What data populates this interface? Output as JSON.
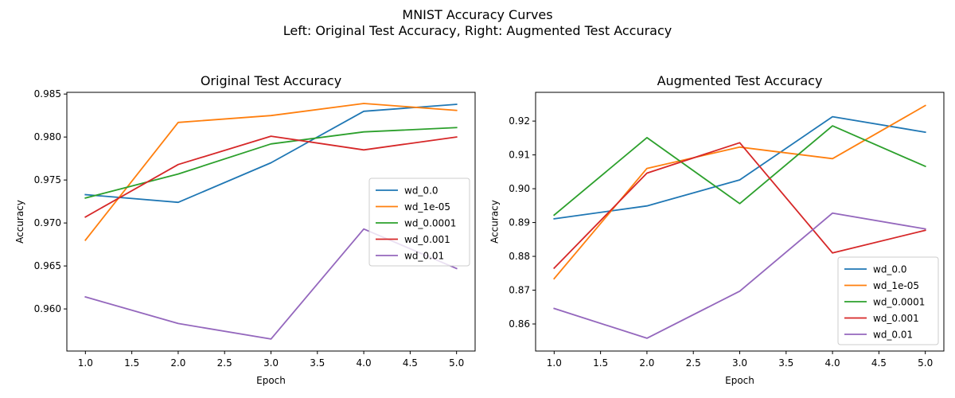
{
  "figure": {
    "suptitle_line1": "MNIST Accuracy Curves",
    "suptitle_line2": "Left: Original Test Accuracy, Right: Augmented Test Accuracy"
  },
  "chart_data": [
    {
      "type": "line",
      "title": "Original Test Accuracy",
      "xlabel": "Epoch",
      "ylabel": "Accuracy",
      "xlim": [
        0.8,
        5.2
      ],
      "ylim": [
        0.9551,
        0.9852
      ],
      "xticks": [
        "1.0",
        "1.5",
        "2.0",
        "2.5",
        "3.0",
        "3.5",
        "4.0",
        "4.5",
        "5.0"
      ],
      "yticks": [
        "0.960",
        "0.965",
        "0.970",
        "0.975",
        "0.980",
        "0.985"
      ],
      "legend_position": "center-right",
      "grid": false,
      "x": [
        1,
        2,
        3,
        4,
        5
      ],
      "series": [
        {
          "name": "wd_0.0",
          "color": "#1f77b4",
          "values": [
            0.9733,
            0.9724,
            0.977,
            0.983,
            0.9838
          ]
        },
        {
          "name": "wd_1e-05",
          "color": "#ff7f0e",
          "values": [
            0.968,
            0.9817,
            0.9825,
            0.9839,
            0.9831
          ]
        },
        {
          "name": "wd_0.0001",
          "color": "#2ca02c",
          "values": [
            0.9729,
            0.9757,
            0.9792,
            0.9806,
            0.9811
          ]
        },
        {
          "name": "wd_0.001",
          "color": "#d62728",
          "values": [
            0.9707,
            0.9768,
            0.9801,
            0.9785,
            0.98
          ]
        },
        {
          "name": "wd_0.01",
          "color": "#9467bd",
          "values": [
            0.9614,
            0.9583,
            0.9565,
            0.9693,
            0.9647
          ]
        }
      ]
    },
    {
      "type": "line",
      "title": "Augmented Test Accuracy",
      "xlabel": "Epoch",
      "ylabel": "Accuracy",
      "xlim": [
        0.8,
        5.2
      ],
      "ylim": [
        0.852,
        0.9285
      ],
      "xticks": [
        "1.0",
        "1.5",
        "2.0",
        "2.5",
        "3.0",
        "3.5",
        "4.0",
        "4.5",
        "5.0"
      ],
      "yticks": [
        "0.86",
        "0.87",
        "0.88",
        "0.89",
        "0.90",
        "0.91",
        "0.92"
      ],
      "legend_position": "lower-right",
      "grid": false,
      "x": [
        1,
        2,
        3,
        4,
        5
      ],
      "series": [
        {
          "name": "wd_0.0",
          "color": "#1f77b4",
          "values": [
            0.8911,
            0.8949,
            0.9026,
            0.9213,
            0.9167
          ]
        },
        {
          "name": "wd_1e-05",
          "color": "#ff7f0e",
          "values": [
            0.8734,
            0.906,
            0.9123,
            0.9089,
            0.9246
          ]
        },
        {
          "name": "wd_0.0001",
          "color": "#2ca02c",
          "values": [
            0.8922,
            0.9151,
            0.8956,
            0.9186,
            0.9066
          ]
        },
        {
          "name": "wd_0.001",
          "color": "#d62728",
          "values": [
            0.8765,
            0.9046,
            0.9136,
            0.881,
            0.8877
          ]
        },
        {
          "name": "wd_0.01",
          "color": "#9467bd",
          "values": [
            0.8646,
            0.8558,
            0.8697,
            0.8928,
            0.8881
          ]
        }
      ]
    }
  ]
}
